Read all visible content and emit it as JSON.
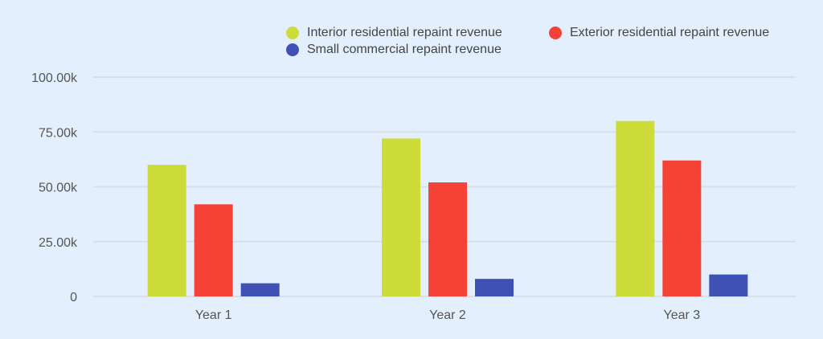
{
  "chart_data": {
    "type": "bar",
    "title": "",
    "xlabel": "",
    "ylabel": "",
    "categories": [
      "Year 1",
      "Year 2",
      "Year 3"
    ],
    "series": [
      {
        "name": "Interior residential repaint revenue",
        "color": "#cddc39",
        "values": [
          60000,
          72000,
          80000
        ]
      },
      {
        "name": "Exterior residential repaint revenue",
        "color": "#f44336",
        "values": [
          42000,
          52000,
          62000
        ]
      },
      {
        "name": "Small commercial repaint revenue",
        "color": "#3f51b5",
        "values": [
          6000,
          8000,
          10000
        ]
      }
    ],
    "ylim": [
      0,
      100000
    ],
    "yticks": [
      0,
      25000,
      50000,
      75000,
      100000
    ],
    "ytick_labels": [
      "0",
      "25.00k",
      "50.00k",
      "75.00k",
      "100.00k"
    ],
    "grid": true,
    "legend_position": "top-right"
  }
}
